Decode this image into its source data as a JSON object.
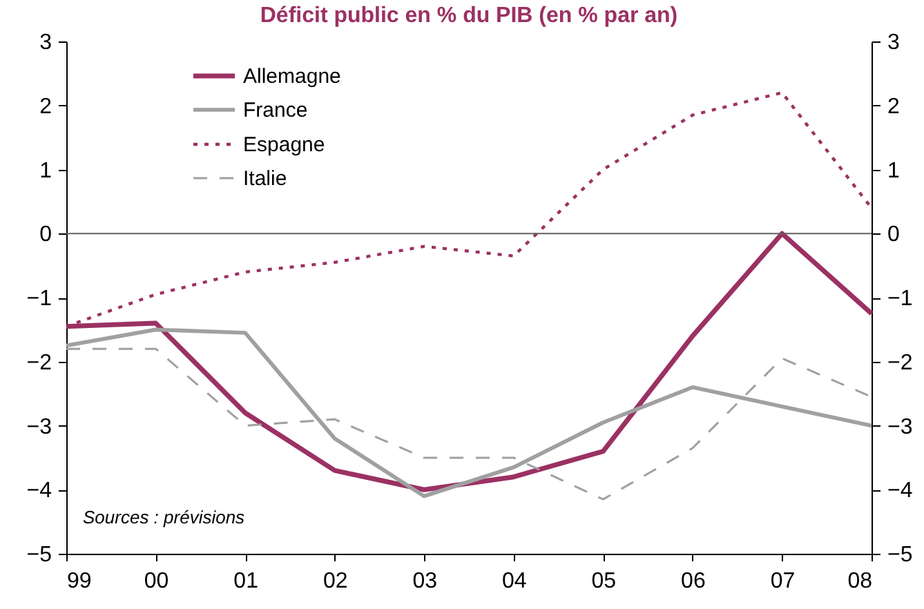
{
  "chart_data": {
    "type": "line",
    "title": "Déficit public en % du PIB (en % par an)",
    "categories": [
      "99",
      "00",
      "01",
      "02",
      "03",
      "04",
      "05",
      "06",
      "07",
      "08"
    ],
    "series": [
      {
        "name": "Allemagne",
        "color": "#9b3163",
        "line_style": "solid",
        "values": [
          -1.45,
          -1.4,
          -2.8,
          -3.7,
          -4.0,
          -3.8,
          -3.4,
          -1.6,
          0.0,
          -1.25
        ]
      },
      {
        "name": "France",
        "color": "#a0a0a0",
        "line_style": "solid",
        "values": [
          -1.75,
          -1.5,
          -1.55,
          -3.2,
          -4.1,
          -3.65,
          -2.95,
          -2.4,
          -2.7,
          -3.0
        ]
      },
      {
        "name": "Espagne",
        "color": "#9b3163",
        "line_style": "dotted",
        "values": [
          -1.45,
          -0.95,
          -0.6,
          -0.45,
          -0.2,
          -0.35,
          1.0,
          1.85,
          2.2,
          0.4
        ]
      },
      {
        "name": "Italie",
        "color": "#a0a0a0",
        "line_style": "dashed",
        "values": [
          -1.8,
          -1.8,
          -3.0,
          -2.9,
          -3.5,
          -3.5,
          -4.15,
          -3.35,
          -1.95,
          -2.55
        ]
      }
    ],
    "ylim": [
      -5,
      3
    ],
    "yticks": [
      -5,
      -4,
      -3,
      -2,
      -1,
      0,
      1,
      2,
      3
    ],
    "y2lim": [
      -5,
      3
    ],
    "y2ticks": [
      -5,
      -4,
      -3,
      -2,
      -1,
      0,
      1,
      2,
      3
    ],
    "ref_lines": [
      {
        "axis": "y",
        "value": 0,
        "color": "#606060"
      }
    ],
    "annotations": [
      "Sources : prévisions"
    ],
    "legend": "top left",
    "grid": false
  }
}
